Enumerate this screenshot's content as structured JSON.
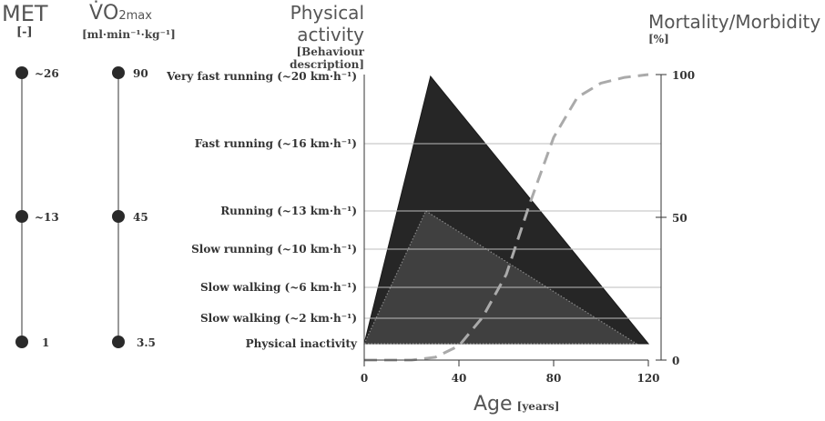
{
  "headers": {
    "met": {
      "title": "MET",
      "unit": "[-]"
    },
    "vo2": {
      "title_main": "V̇O",
      "title_sub2": "2max",
      "unit": "[ml·min⁻¹·kg⁻¹]"
    },
    "activity": {
      "title": "Physical activity",
      "unit": "[Behaviour description]"
    },
    "mortality": {
      "title": "Mortality/Morbidity",
      "unit": "[%]"
    },
    "age": {
      "title": "Age",
      "unit": "[years]"
    }
  },
  "met_scale": [
    "~26",
    "~13",
    "1"
  ],
  "vo2_scale": [
    "90",
    "45",
    "3.5"
  ],
  "activity_levels": [
    "Very fast running (~20 km·h⁻¹)",
    "Fast running (~16 km·h⁻¹)",
    "Running (~13 km·h⁻¹)",
    "Slow running (~10 km·h⁻¹)",
    "Slow walking (~6 km·h⁻¹)",
    "Slow walking (~2 km·h⁻¹)",
    "Physical inactivity"
  ],
  "chart_data": {
    "type": "area",
    "xlabel": "Age",
    "xunit": "[years]",
    "x_ticks": [
      "0",
      "40",
      "80",
      "120"
    ],
    "xlim": [
      0,
      120
    ],
    "y2label": "Mortality/Morbidity",
    "y2unit": "[%]",
    "y2_ticks": [
      "100",
      "50",
      "0"
    ],
    "y2lim": [
      0,
      100
    ],
    "series": [
      {
        "x": [
          0,
          28,
          120
        ],
        "y_level": [
          "Physical inactivity",
          "Very fast running (~20 km·h⁻¹)",
          "Physical inactivity"
        ],
        "color": "#262626"
      },
      {
        "x": [
          0,
          26,
          115
        ],
        "y_level": [
          "Physical inactivity",
          "Running (~13 km·h⁻¹)",
          "Physical inactivity"
        ],
        "color": "#404040"
      },
      {
        "x": [
          0,
          20,
          30,
          40,
          50,
          60,
          70,
          80,
          90,
          100,
          110,
          120
        ],
        "y": [
          0,
          0,
          1,
          5,
          15,
          30,
          55,
          78,
          92,
          97,
          99,
          100
        ],
        "style": "dashed"
      }
    ],
    "colors": {
      "outer": "#262626",
      "inner": "#404040",
      "mortality": "#aaaaaa"
    }
  }
}
